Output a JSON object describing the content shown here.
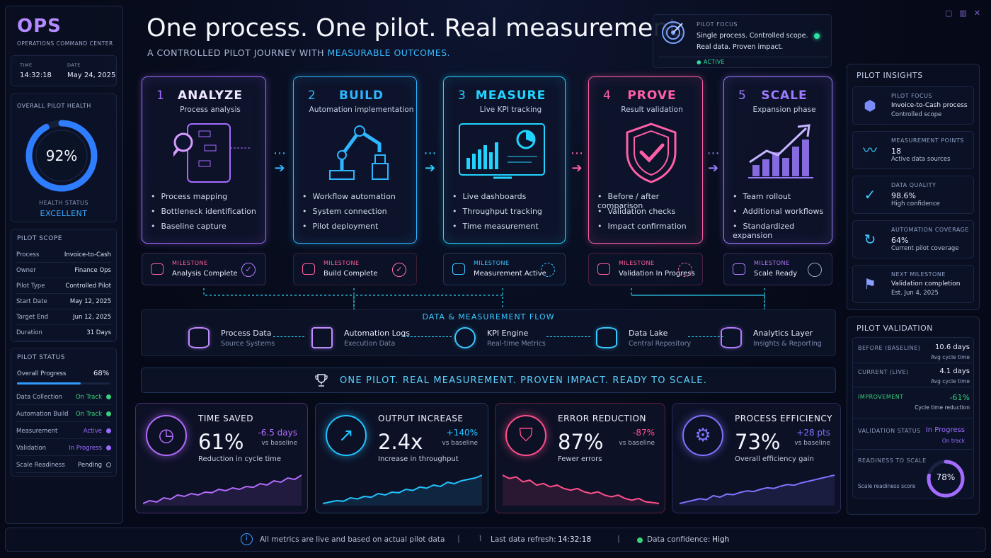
{
  "brand": {
    "logo": "OPS",
    "tagline": "OPERATIONS COMMAND CENTER"
  },
  "clock": {
    "time_label": "TIME",
    "time": "14:32:18",
    "date_label": "DATE",
    "date": "May 24, 2025"
  },
  "health": {
    "label": "OVERALL PILOT HEALTH",
    "value": "92%",
    "percent": 92,
    "status_label": "HEALTH STATUS",
    "status": "EXCELLENT"
  },
  "scope": {
    "title": "PILOT SCOPE",
    "rows": [
      {
        "k": "Process",
        "v": "Invoice-to-Cash"
      },
      {
        "k": "Owner",
        "v": "Finance Ops"
      },
      {
        "k": "Pilot Type",
        "v": "Controlled Pilot"
      },
      {
        "k": "Start Date",
        "v": "May 12, 2025"
      },
      {
        "k": "Target End",
        "v": "Jun 12, 2025"
      },
      {
        "k": "Duration",
        "v": "31 Days"
      }
    ]
  },
  "status": {
    "title": "PILOT STATUS",
    "progress_label": "Overall Progress",
    "progress": "68%",
    "progress_value": 68,
    "rows": [
      {
        "k": "Data Collection",
        "v": "On Track",
        "color": "#38d07a"
      },
      {
        "k": "Automation Build",
        "v": "On Track",
        "color": "#38d07a"
      },
      {
        "k": "Measurement",
        "v": "Active",
        "color": "#9b6cff"
      },
      {
        "k": "Validation",
        "v": "In Progress",
        "color": "#9b6cff"
      },
      {
        "k": "Scale Readiness",
        "v": "Pending",
        "color": "none"
      }
    ]
  },
  "hero": {
    "title": "One process. One pilot. Real measurement.",
    "subtitle_a": "A CONTROLLED PILOT JOURNEY WITH ",
    "subtitle_b": "MEASURABLE OUTCOMES."
  },
  "focus": {
    "title": "PILOT FOCUS",
    "line1": "Single process. Controlled scope.",
    "line2": "Real data. Proven impact.",
    "status": "ACTIVE"
  },
  "stages": [
    {
      "num": "1",
      "title": "ANALYZE",
      "sub": "Process analysis",
      "items": [
        "Process mapping",
        "Bottleneck identification",
        "Baseline capture"
      ],
      "color": "#a46bff",
      "icon": "process-map-icon"
    },
    {
      "num": "2",
      "title": "BUILD",
      "sub": "Automation implementation",
      "items": [
        "Workflow automation",
        "System connection",
        "Pilot deployment"
      ],
      "color": "#2fb6ff",
      "icon": "robot-arm-icon"
    },
    {
      "num": "3",
      "title": "MEASURE",
      "sub": "Live KPI tracking",
      "items": [
        "Live dashboards",
        "Throughput tracking",
        "Time measurement"
      ],
      "color": "#22d3ff",
      "icon": "dashboard-icon"
    },
    {
      "num": "4",
      "title": "PROVE",
      "sub": "Result validation",
      "items": [
        "Before / after comparison",
        "Validation checks",
        "Impact confirmation"
      ],
      "color": "#ff5fa8",
      "icon": "shield-check-icon"
    },
    {
      "num": "5",
      "title": "SCALE",
      "sub": "Expansion phase",
      "items": [
        "Team rollout",
        "Additional workflows",
        "Standardized expansion"
      ],
      "color": "#9b7bff",
      "icon": "growth-chart-icon"
    }
  ],
  "milestones": [
    {
      "label": "MILESTONE",
      "text": "Analysis Complete",
      "color": "#ff4f9a"
    },
    {
      "label": "MILESTONE",
      "text": "Build Complete",
      "color": "#ff4f9a"
    },
    {
      "label": "MILESTONE",
      "text": "Measurement Active",
      "color": "#ff4f9a"
    },
    {
      "label": "MILESTONE",
      "text": "Validation In Progress",
      "color": "#ff4f9a"
    },
    {
      "label": "MILESTONE",
      "text": "Scale Ready",
      "color": "#ff4f9a"
    }
  ],
  "flow": {
    "title": "DATA & MEASUREMENT FLOW",
    "items": [
      {
        "t": "Process Data",
        "s": "Source Systems",
        "icon": "database-icon"
      },
      {
        "t": "Automation Logs",
        "s": "Execution Data",
        "icon": "code-window-icon"
      },
      {
        "t": "KPI Engine",
        "s": "Real-time Metrics",
        "icon": "gauge-icon"
      },
      {
        "t": "Data Lake",
        "s": "Central Repository",
        "icon": "database-icon"
      },
      {
        "t": "Analytics Layer",
        "s": "Insights & Reporting",
        "icon": "bar-chart-icon"
      }
    ]
  },
  "banner": "ONE PILOT.  REAL MEASUREMENT.  PROVEN IMPACT.  READY TO SCALE.",
  "kpis": [
    {
      "title": "TIME SAVED",
      "value": "61%",
      "delta": "-6.5 days",
      "base": "vs baseline",
      "foot": "Reduction in cycle time",
      "color": "#b46bff",
      "icon": "clock-icon",
      "trend": [
        3,
        4,
        3.5,
        5,
        4.5,
        6,
        5.5,
        6.5,
        6,
        7,
        6.8,
        8,
        7.5,
        8.5,
        8,
        9,
        8.7,
        10,
        9.5,
        11,
        10.5,
        12,
        11.5,
        13
      ]
    },
    {
      "title": "OUTPUT INCREASE",
      "value": "2.4x",
      "delta": "+140%",
      "base": "vs baseline",
      "foot": "Increase in throughput",
      "color": "#22c3ff",
      "icon": "trend-up-icon",
      "trend": [
        3,
        3.5,
        4,
        3.8,
        5,
        4.6,
        5.5,
        5.2,
        6.5,
        6,
        7,
        6.8,
        8,
        7.6,
        8.8,
        8.4,
        9.5,
        9,
        10.5,
        10,
        11,
        11.5,
        12,
        13
      ]
    },
    {
      "title": "ERROR REDUCTION",
      "value": "87%",
      "delta": "-87%",
      "base": "vs baseline",
      "foot": "Fewer errors",
      "color": "#ff4f8a",
      "icon": "shield-check-icon",
      "trend": [
        12,
        11,
        11.5,
        10,
        10.5,
        9,
        9.5,
        8.5,
        9,
        8,
        7.5,
        8,
        7,
        6.5,
        7,
        6,
        5.5,
        6,
        5,
        4.5,
        5,
        4,
        3.8,
        3.5
      ]
    },
    {
      "title": "PROCESS EFFICIENCY",
      "value": "73%",
      "delta": "+28 pts",
      "base": "vs baseline",
      "foot": "Overall efficiency gain",
      "color": "#7c74ff",
      "icon": "gear-icon",
      "trend": [
        3,
        3.5,
        4,
        4.5,
        4.2,
        5.5,
        5,
        6,
        5.8,
        6.5,
        7,
        6.8,
        7.5,
        8,
        7.8,
        8.5,
        9,
        8.8,
        9.5,
        10,
        10.5,
        11,
        11.5,
        12
      ]
    }
  ],
  "insights": {
    "title": "PILOT INSIGHTS",
    "items": [
      {
        "t": "PILOT FOCUS",
        "v": "Invoice-to-Cash process",
        "v2": "Controlled scope",
        "icon": "cube-icon"
      },
      {
        "t": "MEASUREMENT POINTS",
        "v": "18",
        "v2": "Active data sources",
        "icon": "pulse-icon"
      },
      {
        "t": "DATA QUALITY",
        "v": "98.6%",
        "v2": "High confidence",
        "icon": "check-circle-icon"
      },
      {
        "t": "AUTOMATION COVERAGE",
        "v": "64%",
        "v2": "Current pilot coverage",
        "icon": "refresh-icon"
      },
      {
        "t": "NEXT MILESTONE",
        "v": "Validation completion",
        "v2": "Est. Jun 4, 2025",
        "icon": "flag-icon"
      }
    ]
  },
  "validation": {
    "title": "PILOT VALIDATION",
    "before_label": "BEFORE (BASELINE)",
    "before": "10.6 days",
    "before_sub": "Avg cycle time",
    "current_label": "CURRENT (LIVE)",
    "current": "4.1 days",
    "current_sub": "Avg cycle time",
    "improve_label": "IMPROVEMENT",
    "improve": "-61%",
    "improve_sub": "Cycle time reduction",
    "status_label": "VALIDATION STATUS",
    "status": "In Progress",
    "status_sub": "On track",
    "ready_label": "READINESS TO SCALE",
    "ready_sub": "Scale readiness score",
    "ready": "78%",
    "ready_value": 78
  },
  "footer": {
    "note": "All metrics are live and based on actual pilot data",
    "refresh_label": "Last data refresh:",
    "refresh": "14:32:18",
    "confidence_label": "Data confidence:",
    "confidence": "High"
  }
}
